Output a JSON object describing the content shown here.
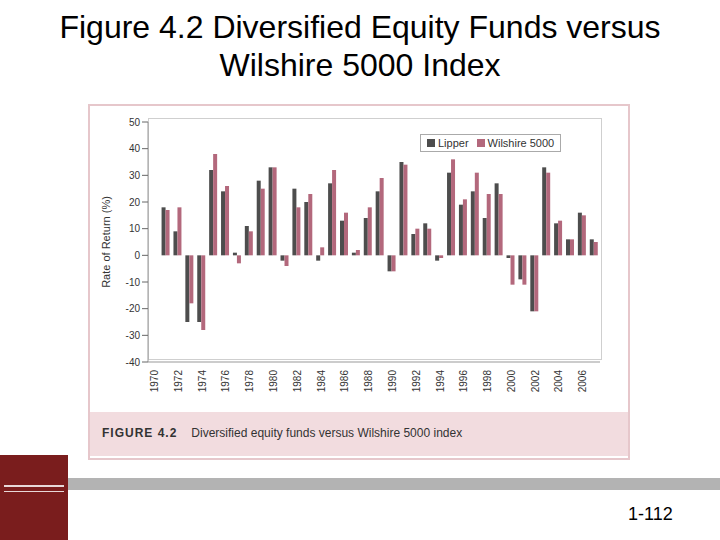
{
  "chart_data": {
    "type": "bar",
    "title": "Figure 4.2 Diversified Equity Funds versus Wilshire 5000 Index",
    "caption": {
      "label": "FIGURE 4.2",
      "text": "Diversified equity funds versus Wilshire 5000 index"
    },
    "y_label": "Rate of Return (%)",
    "categories": [
      "1970",
      null,
      "1972",
      null,
      "1974",
      null,
      "1976",
      null,
      "1978",
      null,
      "1980",
      null,
      "1982",
      null,
      "1984",
      null,
      "1986",
      null,
      "1988",
      null,
      "1990",
      null,
      "1992",
      null,
      "1994",
      null,
      "1996",
      null,
      "1998",
      null,
      "2000",
      null,
      "2002",
      null,
      "2004",
      null,
      "2006",
      null
    ],
    "series": [
      {
        "name": "Lipper",
        "color": "#4d4d4d",
        "values": [
          null,
          18,
          9,
          -25,
          -25,
          32,
          24,
          1,
          11,
          28,
          33,
          -2,
          25,
          20,
          -2,
          27,
          13,
          1,
          14,
          24,
          -6,
          35,
          8,
          12,
          -2,
          31,
          19,
          24,
          14,
          27,
          -1,
          -9,
          -21,
          33,
          12,
          6,
          16,
          6
        ]
      },
      {
        "name": "Wilshire 5000",
        "color": "#b3687c",
        "values": [
          null,
          17,
          18,
          -18,
          -28,
          38,
          26,
          -3,
          9,
          25,
          33,
          -4,
          18,
          23,
          3,
          32,
          16,
          2,
          18,
          29,
          -6,
          34,
          10,
          10,
          -1,
          36,
          21,
          31,
          23,
          23,
          -11,
          -11,
          -21,
          31,
          13,
          6,
          15,
          5
        ]
      }
    ],
    "ylim": [
      -40,
      50
    ],
    "yticks": [
      -40,
      -30,
      -20,
      -10,
      0,
      10,
      20,
      30,
      40,
      50
    ],
    "grid": false,
    "legend": "upper right"
  },
  "page_number": "1-112"
}
